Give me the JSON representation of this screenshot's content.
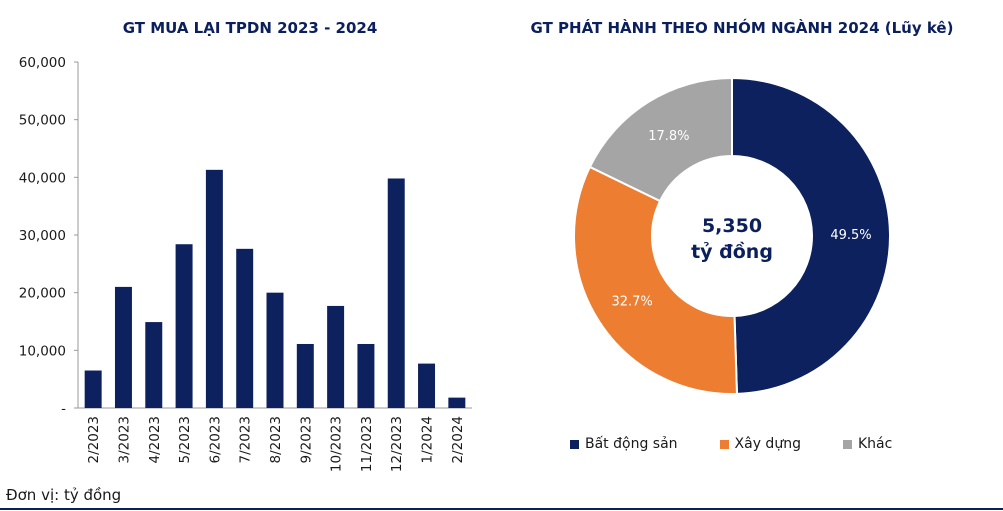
{
  "chart_data": [
    {
      "type": "bar",
      "title": "GT MUA LẠI TPDN 2023 - 2024",
      "categories": [
        "2/2023",
        "3/2023",
        "4/2023",
        "5/2023",
        "6/2023",
        "7/2023",
        "8/2023",
        "9/2023",
        "10/2023",
        "11/2023",
        "12/2023",
        "1/2024",
        "2/2024"
      ],
      "values": [
        6500,
        21000,
        14900,
        28400,
        41300,
        27600,
        20000,
        11100,
        17700,
        11100,
        39800,
        7700,
        1800
      ],
      "ylim": [
        0,
        60000
      ],
      "yticks": [
        0,
        10000,
        20000,
        30000,
        40000,
        50000,
        60000
      ],
      "ytick_labels": [
        "-",
        "10,000",
        "20,000",
        "30,000",
        "40,000",
        "50,000",
        "60,000"
      ],
      "color": "#0d215e",
      "grid": false
    },
    {
      "type": "pie",
      "title": "GT PHÁT HÀNH THEO NHÓM NGÀNH 2024 (Lũy kê)",
      "labels": [
        "Bất động sản",
        "Xây dựng",
        "Khác"
      ],
      "values": [
        49.5,
        32.7,
        17.8
      ],
      "value_labels": [
        "49.5%",
        "32.7%",
        "17.8%"
      ],
      "colors": [
        "#0d215e",
        "#ed7d31",
        "#a5a5a5"
      ],
      "center_value": "5,350",
      "center_unit": "tỷ đồng",
      "legend_position": "bottom"
    }
  ],
  "footnote": "Đơn vị: tỷ đồng"
}
